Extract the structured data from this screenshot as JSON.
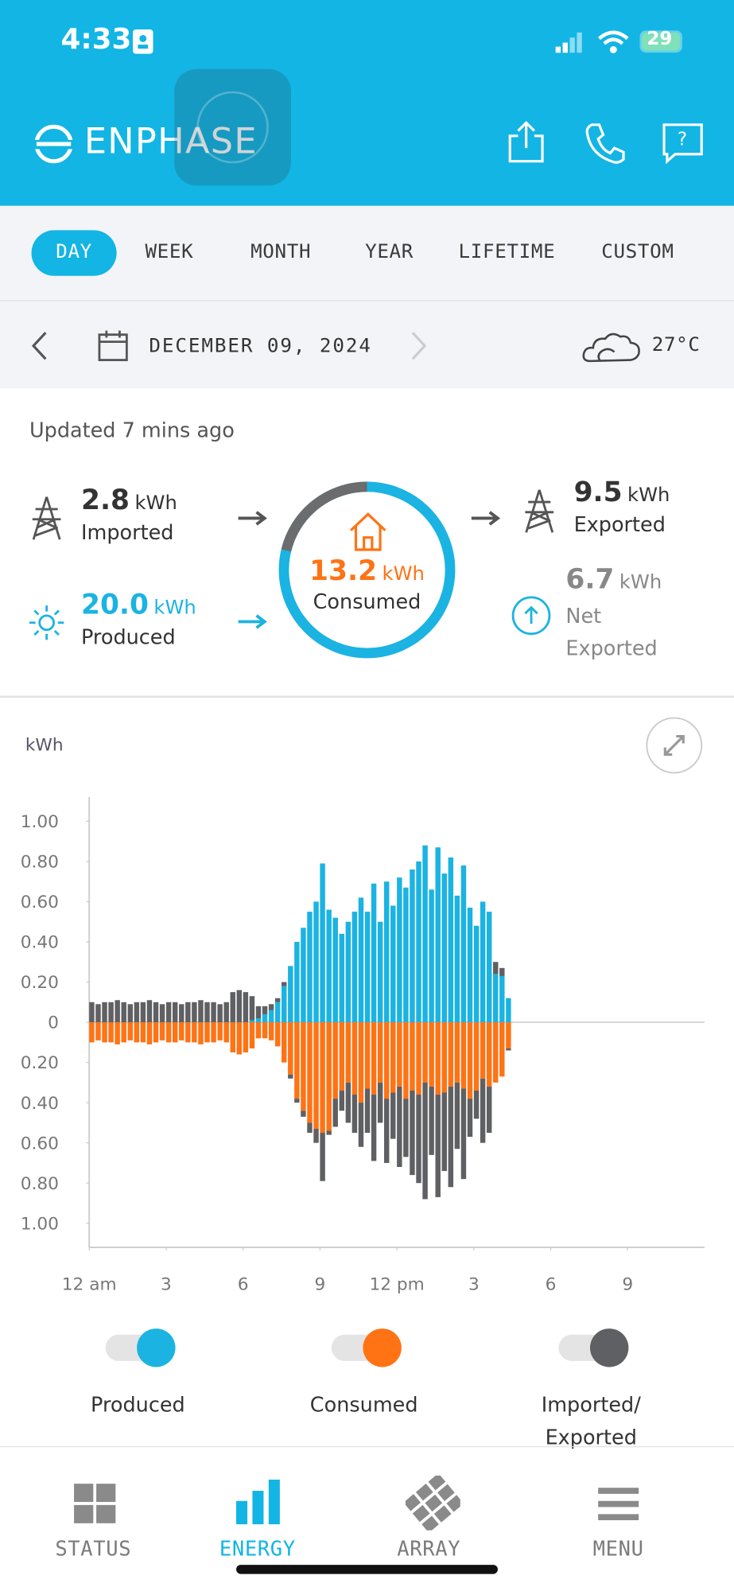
{
  "status_bar": {
    "time": "4:33",
    "battery": "29"
  },
  "header": {
    "brand": "ENPHASE"
  },
  "tabs": [
    "DAY",
    "WEEK",
    "MONTH",
    "YEAR",
    "LIFETIME",
    "CUSTOM"
  ],
  "date_bar": {
    "date": "DECEMBER 09, 2024",
    "temperature": "27°C"
  },
  "summary": {
    "updated": "Updated 7 mins ago",
    "imported": {
      "value": "2.8",
      "unit": "kWh",
      "label": "Imported"
    },
    "produced": {
      "value": "20.0",
      "unit": "kWh",
      "label": "Produced"
    },
    "consumed": {
      "value": "13.2",
      "unit": "kWh",
      "label": "Consumed"
    },
    "exported": {
      "value": "9.5",
      "unit": "kWh",
      "label": "Exported"
    },
    "net": {
      "value": "6.7",
      "unit": "kWh",
      "label": "Net Exported"
    }
  },
  "chart_data": {
    "type": "bar",
    "stacked": true,
    "y_label": "kWh",
    "x": [
      0,
      0.25,
      0.5,
      0.75,
      1,
      1.25,
      1.5,
      1.75,
      2,
      2.25,
      2.5,
      2.75,
      3,
      3.25,
      3.5,
      3.75,
      4,
      4.25,
      4.5,
      4.75,
      5,
      5.25,
      5.5,
      5.75,
      6,
      6.25,
      6.5,
      6.75,
      7,
      7.25,
      7.5,
      7.75,
      8,
      8.25,
      8.5,
      8.75,
      9,
      9.25,
      9.5,
      9.75,
      10,
      10.25,
      10.5,
      10.75,
      11,
      11.25,
      11.5,
      11.75,
      12,
      12.25,
      12.5,
      12.75,
      13,
      13.25,
      13.5,
      13.75,
      14,
      14.25,
      14.5,
      14.75,
      15,
      15.25,
      15.5,
      15.75,
      16,
      16.25
    ],
    "xlim": [
      0,
      24
    ],
    "xticks": [
      {
        "value": 0,
        "label": "12 am"
      },
      3,
      6,
      9,
      {
        "value": 12,
        "label": "12 pm"
      },
      {
        "value": 15,
        "label": "3"
      },
      {
        "value": 18,
        "label": "6"
      },
      {
        "value": 21,
        "label": "9"
      }
    ],
    "ylim": [
      -1.12,
      1.12
    ],
    "yticks": [
      {
        "value": 1,
        "label": "1.00"
      },
      {
        "value": 0.8,
        "label": "0.80"
      },
      {
        "value": 0.6,
        "label": "0.60"
      },
      {
        "value": 0.4,
        "label": "0.40"
      },
      {
        "value": 0.2,
        "label": "0.20"
      },
      0,
      {
        "value": -0.2,
        "label": "0.20"
      },
      {
        "value": -0.4,
        "label": "0.40"
      },
      {
        "value": -0.6,
        "label": "0.60"
      },
      {
        "value": -0.8,
        "label": "0.80"
      },
      {
        "value": -1,
        "label": "1.00"
      }
    ],
    "grid": false,
    "series": [
      {
        "name": "Produced",
        "color": "#1bb3e2",
        "values": [
          0,
          0,
          0,
          0,
          0,
          0,
          0,
          0,
          0,
          0,
          0,
          0,
          0,
          0,
          0,
          0,
          0,
          0,
          0,
          0,
          0,
          0,
          0,
          0,
          0,
          0.01,
          0.02,
          0.04,
          0.06,
          0.1,
          0.18,
          0.28,
          0.4,
          0.47,
          0.55,
          0.6,
          0.79,
          0.56,
          0.52,
          0.44,
          0.5,
          0.55,
          0.62,
          0.55,
          0.69,
          0.5,
          0.7,
          0.58,
          0.72,
          0.67,
          0.76,
          0.8,
          0.88,
          0.66,
          0.87,
          0.74,
          0.82,
          0.63,
          0.78,
          0.57,
          0.48,
          0.6,
          0.55,
          0.24,
          0.23,
          0.12
        ]
      },
      {
        "name": "Consumed",
        "color": "#ff7315",
        "values": [
          -0.1,
          -0.09,
          -0.1,
          -0.1,
          -0.11,
          -0.1,
          -0.09,
          -0.1,
          -0.1,
          -0.11,
          -0.1,
          -0.09,
          -0.1,
          -0.1,
          -0.09,
          -0.1,
          -0.1,
          -0.11,
          -0.1,
          -0.1,
          -0.09,
          -0.1,
          -0.15,
          -0.16,
          -0.15,
          -0.13,
          -0.08,
          -0.08,
          -0.09,
          -0.12,
          -0.2,
          -0.26,
          -0.38,
          -0.44,
          -0.5,
          -0.53,
          -0.55,
          -0.54,
          -0.38,
          -0.34,
          -0.3,
          -0.36,
          -0.4,
          -0.33,
          -0.36,
          -0.3,
          -0.38,
          -0.35,
          -0.32,
          -0.38,
          -0.34,
          -0.36,
          -0.3,
          -0.32,
          -0.36,
          -0.35,
          -0.32,
          -0.3,
          -0.33,
          -0.38,
          -0.34,
          -0.28,
          -0.32,
          -0.3,
          -0.27,
          -0.13
        ]
      },
      {
        "name": "Imported/ Exported",
        "color": "#5f6063",
        "values": [
          0.1,
          0.09,
          0.1,
          0.1,
          0.11,
          0.1,
          0.09,
          0.1,
          0.1,
          0.11,
          0.1,
          0.09,
          0.1,
          0.1,
          0.09,
          0.1,
          0.1,
          0.11,
          0.1,
          0.1,
          0.09,
          0.1,
          0.15,
          0.16,
          0.15,
          0.12,
          0.06,
          0.04,
          0.03,
          0.02,
          0.02,
          -0.02,
          -0.02,
          -0.03,
          -0.05,
          -0.07,
          -0.24,
          -0.02,
          -0.14,
          -0.1,
          -0.2,
          -0.19,
          -0.22,
          -0.22,
          -0.33,
          -0.2,
          -0.32,
          -0.23,
          -0.4,
          -0.29,
          -0.42,
          -0.44,
          -0.58,
          -0.34,
          -0.51,
          -0.39,
          -0.5,
          -0.33,
          -0.45,
          -0.19,
          -0.14,
          -0.32,
          -0.23,
          0.06,
          0.04,
          -0.01
        ]
      }
    ]
  },
  "nav": [
    "STATUS",
    "ENERGY",
    "ARRAY",
    "MENU"
  ]
}
